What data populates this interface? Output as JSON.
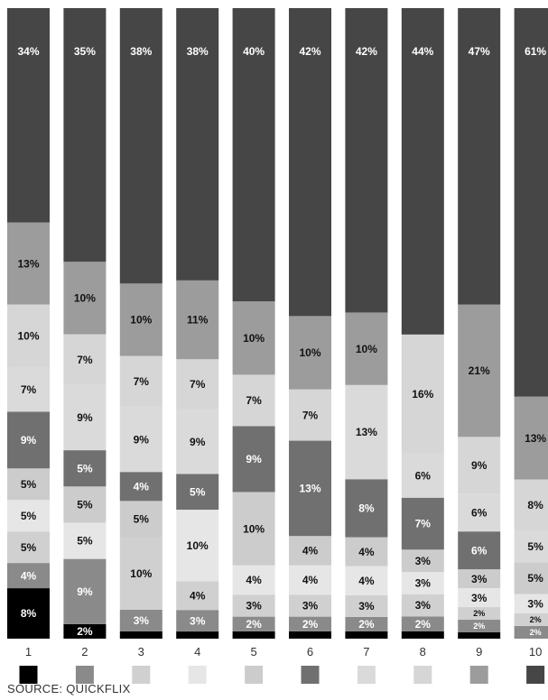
{
  "source_label": "SOURCE: QUICKFLIX",
  "colors": {
    "segments": [
      "#000000",
      "#8a8a8a",
      "#d0d0d0",
      "#e6e6e6",
      "#cccccc",
      "#707070",
      "#dadada",
      "#d6d6d6",
      "#9c9c9c",
      "#464646"
    ],
    "label_dark": "#111111",
    "label_light": "#ffffff"
  },
  "chart_data": {
    "type": "bar",
    "stacked": true,
    "normalized": true,
    "categories": [
      "1",
      "2",
      "3",
      "4",
      "5",
      "6",
      "7",
      "8",
      "9",
      "10"
    ],
    "series": [
      {
        "values": [
          8,
          2,
          1,
          1,
          1,
          1,
          1,
          1,
          1,
          0
        ],
        "labels": [
          "8%",
          "2%",
          "",
          "",
          "",
          "",
          "",
          "",
          "",
          ""
        ]
      },
      {
        "values": [
          4,
          9,
          3,
          3,
          2,
          2,
          2,
          2,
          2,
          2
        ],
        "labels": [
          "4%",
          "9%",
          "3%",
          "3%",
          "2%",
          "2%",
          "2%",
          "2%",
          "2%",
          "2%"
        ]
      },
      {
        "values": [
          5,
          0,
          10,
          4,
          3,
          3,
          3,
          3,
          2,
          2
        ],
        "labels": [
          "5%",
          "",
          "10%",
          "4%",
          "3%",
          "3%",
          "3%",
          "3%",
          "2%",
          "2%"
        ]
      },
      {
        "values": [
          5,
          5,
          0,
          10,
          4,
          4,
          4,
          3,
          3,
          3
        ],
        "labels": [
          "5%",
          "5%",
          "",
          "10%",
          "4%",
          "4%",
          "4%",
          "3%",
          "3%",
          "3%"
        ]
      },
      {
        "values": [
          5,
          5,
          5,
          0,
          10,
          4,
          4,
          3,
          3,
          5
        ],
        "labels": [
          "5%",
          "5%",
          "5%",
          "",
          "10%",
          "4%",
          "4%",
          "3%",
          "3%",
          "5%"
        ]
      },
      {
        "values": [
          9,
          5,
          4,
          5,
          9,
          13,
          8,
          7,
          6,
          0
        ],
        "labels": [
          "9%",
          "5%",
          "4%",
          "5%",
          "9%",
          "13%",
          "8%",
          "7%",
          "6%",
          ""
        ]
      },
      {
        "values": [
          7,
          9,
          9,
          9,
          0,
          0,
          13,
          6,
          6,
          5
        ],
        "labels": [
          "7%",
          "9%",
          "9%",
          "9%",
          "",
          "",
          "13%",
          "6%",
          "6%",
          "5%"
        ]
      },
      {
        "values": [
          10,
          7,
          7,
          7,
          7,
          7,
          0,
          16,
          9,
          8
        ],
        "labels": [
          "10%",
          "7%",
          "7%",
          "7%",
          "7%",
          "7%",
          "",
          "16%",
          "9%",
          "8%"
        ]
      },
      {
        "values": [
          13,
          10,
          10,
          11,
          10,
          10,
          10,
          0,
          21,
          13
        ],
        "labels": [
          "13%",
          "10%",
          "10%",
          "11%",
          "10%",
          "10%",
          "10%",
          "",
          "21%",
          "13%"
        ]
      },
      {
        "values": [
          34,
          35,
          38,
          38,
          40,
          42,
          42,
          44,
          47,
          61
        ],
        "labels": [
          "34%",
          "35%",
          "38%",
          "38%",
          "40%",
          "42%",
          "42%",
          "44%",
          "47%",
          "61%"
        ]
      }
    ]
  }
}
